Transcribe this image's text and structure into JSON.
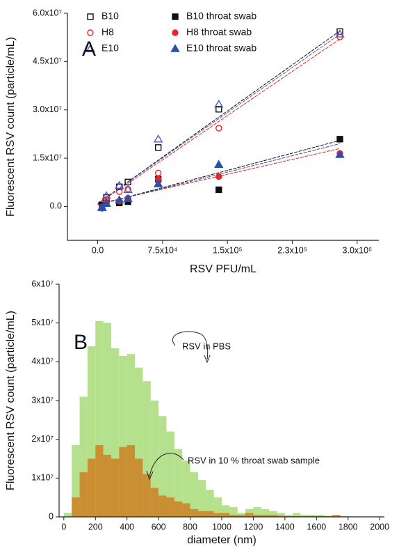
{
  "chart_data": [
    {
      "type": "scatter",
      "panel": "A",
      "x_label": "RSV PFU/mL",
      "y_label": "Fluorescent RSV count (particle/mL)",
      "x": [
        5000,
        10000,
        25000,
        35000,
        70000,
        140000,
        280000
      ],
      "xlim": [
        -35000,
        325000
      ],
      "xticks": [
        {
          "value": 0,
          "label": "0.0"
        },
        {
          "value": 75000,
          "label": "7.5x10⁴"
        },
        {
          "value": 150000,
          "label": "1.5x10⁵"
        },
        {
          "value": 225000,
          "label": "2.3x10⁵"
        },
        {
          "value": 300000,
          "label": "3.0x10⁵"
        }
      ],
      "ylim": [
        -10500000,
        60000000
      ],
      "yticks": [
        {
          "value": 0,
          "label": "0.0"
        },
        {
          "value": 15000000,
          "label": "1.5x10⁷"
        },
        {
          "value": 30000000,
          "label": "3.0x10⁷"
        },
        {
          "value": 45000000,
          "label": "4.5x10⁷"
        },
        {
          "value": 60000000,
          "label": "6.0x10⁷"
        }
      ],
      "series": [
        {
          "name": "B10",
          "color": "#111111",
          "marker": "square-open",
          "values": [
            500000,
            2800000,
            6100000,
            7600000,
            18300000,
            30200000,
            54300000
          ],
          "fit": {
            "x": [
              0,
              280000
            ],
            "y": [
              1000000,
              54500000
            ]
          }
        },
        {
          "name": "H8",
          "color": "#e8262a",
          "marker": "circle-open",
          "values": [
            -600000,
            2200000,
            4600000,
            5400000,
            10400000,
            24300000,
            52600000
          ],
          "fit": {
            "x": [
              0,
              280000
            ],
            "y": [
              800000,
              52000000
            ]
          }
        },
        {
          "name": "E10",
          "color": "#4a5cc8",
          "marker": "triangle-open",
          "values": [
            -400000,
            3300000,
            6500000,
            5200000,
            20900000,
            31700000,
            53500000
          ],
          "fit": {
            "x": [
              0,
              280000
            ],
            "y": [
              1000000,
              53500000
            ]
          }
        },
        {
          "name": "B10 throat swab",
          "color": "#111111",
          "marker": "square",
          "values": [
            400000,
            1100000,
            1100000,
            1500000,
            8500000,
            5200000,
            20900000
          ],
          "fit": {
            "x": [
              0,
              280000
            ],
            "y": [
              500000,
              20500000
            ]
          }
        },
        {
          "name": "H8 throat swab",
          "color": "#e8262a",
          "marker": "circle",
          "values": [
            -200000,
            1300000,
            1700000,
            2600000,
            8500000,
            9300000,
            16500000
          ],
          "fit": {
            "x": [
              0,
              280000
            ],
            "y": [
              800000,
              18000000
            ]
          }
        },
        {
          "name": "E10 throat swab",
          "color": "#2c4fa8",
          "marker": "triangle",
          "values": [
            -200000,
            900000,
            2000000,
            2400000,
            7000000,
            13000000,
            16100000
          ],
          "fit": {
            "x": [
              0,
              280000
            ],
            "y": [
              500000,
              19500000
            ]
          }
        }
      ]
    },
    {
      "type": "histogram",
      "panel": "B",
      "x_label": "diameter (nm)",
      "y_label": "Fluorescent RSV count (particle/mL)",
      "bins": [
        0,
        50,
        100,
        150,
        200,
        250,
        300,
        350,
        400,
        450,
        500,
        550,
        600,
        650,
        700,
        750,
        800,
        850,
        900,
        950,
        1000,
        1050,
        1100,
        1150,
        1200,
        1250,
        1300,
        1350,
        1400,
        1450,
        1500,
        1550,
        1600,
        1650,
        1700,
        1750,
        1800,
        1850,
        1900,
        1950,
        2000
      ],
      "xlim": [
        -30,
        2030
      ],
      "xticks": [
        0,
        200,
        400,
        600,
        800,
        1000,
        1200,
        1400,
        1600,
        1800,
        2000
      ],
      "ylim": [
        0,
        60000000
      ],
      "yticks": [
        0,
        {
          "value": 10000000,
          "label": "1x10⁷"
        },
        {
          "value": 20000000,
          "label": "2x10⁷"
        },
        {
          "value": 30000000,
          "label": "3x10⁷"
        },
        {
          "value": 40000000,
          "label": "4x10⁷"
        },
        {
          "value": 50000000,
          "label": "5x10⁷"
        },
        {
          "value": 60000000,
          "label": "6x10⁷"
        }
      ],
      "series": [
        {
          "color": "#b5e08c",
          "values": [
            1000000,
            18500000,
            31000000,
            44000000,
            50500000,
            50000000,
            43500000,
            41500000,
            42000000,
            38500000,
            35000000,
            30000000,
            26000000,
            22000000,
            17500000,
            14500000,
            11500000,
            9500000,
            7000000,
            5000000,
            3000000,
            2500000,
            1000000,
            2000000,
            2500000,
            2000000,
            1500000,
            1000000,
            500000,
            1000000,
            500000,
            500000,
            500000,
            300000,
            300000,
            200000,
            100000,
            100000,
            0,
            0
          ]
        },
        {
          "color": "#cf7a1c",
          "values": [
            0,
            5000000,
            11500000,
            15000000,
            18500000,
            16000000,
            15000000,
            18000000,
            18500000,
            15000000,
            11000000,
            7500000,
            5500000,
            5000000,
            4000000,
            3500000,
            2000000,
            1500000,
            1500000,
            1000000,
            1000000,
            500000,
            500000,
            1000000,
            500000,
            500000,
            500000,
            300000,
            200000,
            200000,
            200000,
            200000,
            200000,
            200000,
            500000,
            100000,
            100000,
            0,
            0,
            0
          ]
        }
      ],
      "annotations": [
        "RSV in PBS",
        "RSV in 10 % throat swab sample"
      ]
    }
  ]
}
